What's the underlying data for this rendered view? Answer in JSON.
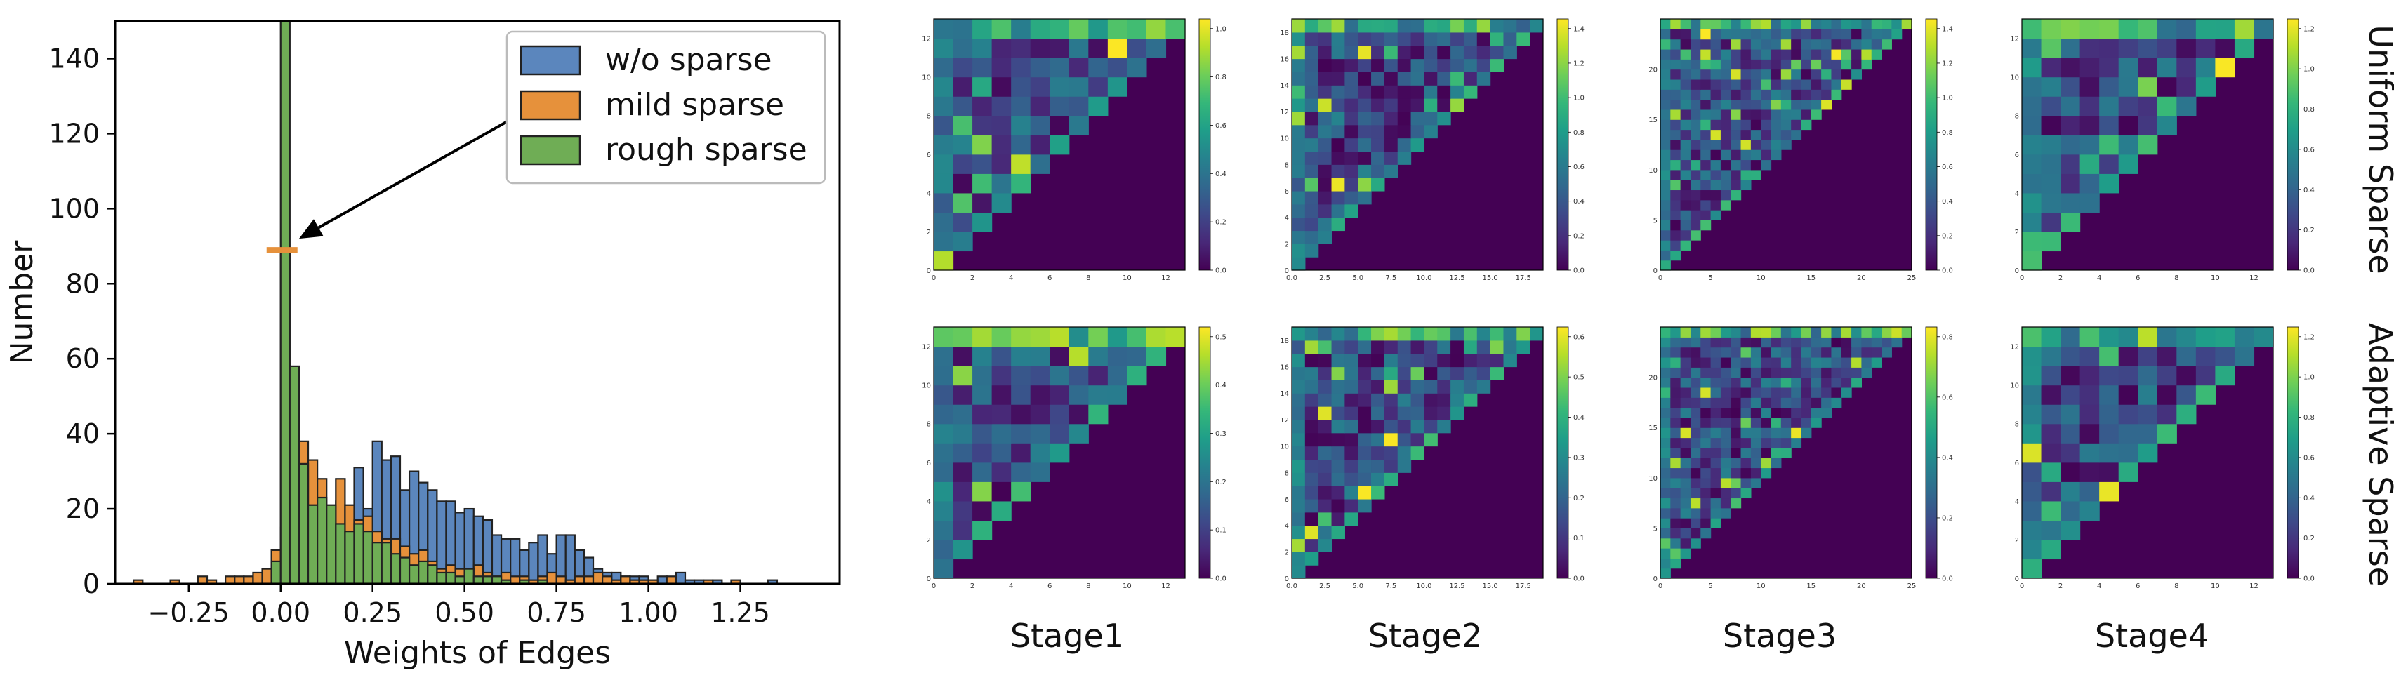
{
  "colors": {
    "wo_sparse": "#5b86bd",
    "mild_sparse": "#e6913b",
    "rough_sparse": "#6fad55",
    "bar_edge": "#222222",
    "viridis": [
      "#440154",
      "#482878",
      "#3e4989",
      "#31688e",
      "#26828e",
      "#1f9e89",
      "#35b779",
      "#6ece58",
      "#b5de2b",
      "#fde725"
    ]
  },
  "chart_data": [
    {
      "type": "bar",
      "chart": "histogram",
      "xlabel": "Weights of Edges",
      "ylabel": "Number",
      "xlim": [
        -0.45,
        1.52
      ],
      "ylim": [
        0,
        150
      ],
      "xticks": [
        -0.25,
        0.0,
        0.25,
        0.5,
        0.75,
        1.0,
        1.25
      ],
      "xtick_labels": [
        "−0.25",
        "0.00",
        "0.25",
        "0.50",
        "0.75",
        "1.00",
        "1.25"
      ],
      "yticks": [
        0,
        20,
        40,
        60,
        80,
        100,
        120,
        140
      ],
      "ytick_labels": [
        "0",
        "20",
        "40",
        "60",
        "80",
        "100",
        "120",
        "140"
      ],
      "grid": false,
      "legend_position": "top-right",
      "bin_width": 0.025,
      "annotation": {
        "type": "arrow",
        "text": "",
        "from": [
          0.63,
          124
        ],
        "to": [
          0.05,
          92
        ]
      },
      "marker": {
        "x": 0.0,
        "y": 89,
        "color": "#e6913b"
      },
      "series": [
        {
          "name": "w/o sparse",
          "bins": [
            [
              -0.025,
              4
            ],
            [
              0.0,
              15
            ],
            [
              0.025,
              18
            ],
            [
              0.05,
              13
            ],
            [
              0.075,
              16
            ],
            [
              0.1,
              14
            ],
            [
              0.125,
              16
            ],
            [
              0.15,
              22
            ],
            [
              0.175,
              20
            ],
            [
              0.2,
              31
            ],
            [
              0.225,
              20
            ],
            [
              0.25,
              38
            ],
            [
              0.275,
              33
            ],
            [
              0.3,
              34
            ],
            [
              0.325,
              25
            ],
            [
              0.35,
              30
            ],
            [
              0.375,
              27
            ],
            [
              0.4,
              25
            ],
            [
              0.425,
              22
            ],
            [
              0.45,
              22
            ],
            [
              0.475,
              19
            ],
            [
              0.5,
              20
            ],
            [
              0.525,
              18
            ],
            [
              0.55,
              17
            ],
            [
              0.575,
              13
            ],
            [
              0.6,
              12
            ],
            [
              0.625,
              12
            ],
            [
              0.65,
              9
            ],
            [
              0.675,
              11
            ],
            [
              0.7,
              13
            ],
            [
              0.725,
              8
            ],
            [
              0.75,
              13
            ],
            [
              0.775,
              13
            ],
            [
              0.8,
              9
            ],
            [
              0.825,
              7
            ],
            [
              0.85,
              4
            ],
            [
              0.875,
              3
            ],
            [
              0.9,
              3
            ],
            [
              0.925,
              2
            ],
            [
              0.95,
              2
            ],
            [
              0.975,
              2
            ],
            [
              1.0,
              1
            ],
            [
              1.025,
              2
            ],
            [
              1.05,
              1
            ],
            [
              1.075,
              3
            ],
            [
              1.1,
              1
            ],
            [
              1.125,
              1
            ],
            [
              1.175,
              1
            ],
            [
              1.325,
              1
            ]
          ]
        },
        {
          "name": "mild sparse",
          "bins": [
            [
              -0.4,
              1
            ],
            [
              -0.3,
              1
            ],
            [
              -0.225,
              2
            ],
            [
              -0.2,
              1
            ],
            [
              -0.15,
              2
            ],
            [
              -0.125,
              2
            ],
            [
              -0.1,
              2
            ],
            [
              -0.075,
              3
            ],
            [
              -0.05,
              4
            ],
            [
              -0.025,
              9
            ],
            [
              0.0,
              89
            ],
            [
              0.025,
              21
            ],
            [
              0.05,
              38
            ],
            [
              0.075,
              33
            ],
            [
              0.1,
              28
            ],
            [
              0.125,
              20
            ],
            [
              0.15,
              28
            ],
            [
              0.175,
              21
            ],
            [
              0.2,
              17
            ],
            [
              0.225,
              18
            ],
            [
              0.25,
              14
            ],
            [
              0.275,
              12
            ],
            [
              0.3,
              12
            ],
            [
              0.325,
              10
            ],
            [
              0.35,
              8
            ],
            [
              0.375,
              9
            ],
            [
              0.4,
              6
            ],
            [
              0.425,
              4
            ],
            [
              0.45,
              5
            ],
            [
              0.475,
              4
            ],
            [
              0.5,
              4
            ],
            [
              0.525,
              5
            ],
            [
              0.55,
              3
            ],
            [
              0.575,
              2
            ],
            [
              0.6,
              3
            ],
            [
              0.625,
              2
            ],
            [
              0.65,
              2
            ],
            [
              0.675,
              1
            ],
            [
              0.7,
              2
            ],
            [
              0.725,
              3
            ],
            [
              0.75,
              2
            ],
            [
              0.775,
              1
            ],
            [
              0.8,
              2
            ],
            [
              0.825,
              2
            ],
            [
              0.85,
              3
            ],
            [
              0.875,
              2
            ],
            [
              0.9,
              1
            ],
            [
              0.925,
              2
            ],
            [
              0.95,
              1
            ],
            [
              0.975,
              1
            ],
            [
              1.0,
              1
            ],
            [
              1.05,
              2
            ],
            [
              1.15,
              1
            ],
            [
              1.225,
              1
            ]
          ]
        },
        {
          "name": "rough sparse",
          "bins": [
            [
              -0.025,
              6
            ],
            [
              0.0,
              150
            ],
            [
              0.025,
              58
            ],
            [
              0.05,
              32
            ],
            [
              0.075,
              21
            ],
            [
              0.1,
              23
            ],
            [
              0.125,
              21
            ],
            [
              0.15,
              16
            ],
            [
              0.175,
              14
            ],
            [
              0.2,
              16
            ],
            [
              0.225,
              14
            ],
            [
              0.25,
              11
            ],
            [
              0.275,
              11
            ],
            [
              0.3,
              8
            ],
            [
              0.325,
              7
            ],
            [
              0.35,
              5
            ],
            [
              0.375,
              6
            ],
            [
              0.4,
              5
            ],
            [
              0.425,
              3
            ],
            [
              0.45,
              3
            ],
            [
              0.475,
              2
            ],
            [
              0.5,
              4
            ],
            [
              0.525,
              2
            ],
            [
              0.55,
              2
            ],
            [
              0.575,
              2
            ],
            [
              0.6,
              1
            ],
            [
              0.65,
              1
            ],
            [
              0.7,
              1
            ]
          ]
        }
      ]
    },
    {
      "type": "heatmap",
      "panels": [
        {
          "row": "Uniform Sparse",
          "stage": "Stage1",
          "n": 13,
          "vmax": 1.0,
          "colorbar_ticks": [
            "0.0",
            "0.2",
            "0.4",
            "0.6",
            "0.8",
            "1.0"
          ],
          "xticks": [
            "0",
            "2",
            "4",
            "6",
            "8",
            "10",
            "12"
          ],
          "yticks": [
            "0",
            "2",
            "4",
            "6",
            "8",
            "10",
            "12"
          ],
          "seed": 11
        },
        {
          "row": "Uniform Sparse",
          "stage": "Stage2",
          "n": 19,
          "vmax": 1.4,
          "colorbar_ticks": [
            "0.0",
            "0.2",
            "0.4",
            "0.6",
            "0.8",
            "1.0",
            "1.2",
            "1.4"
          ],
          "xticks": [
            "0.0",
            "2.5",
            "5.0",
            "7.5",
            "10.0",
            "12.5",
            "15.0",
            "17.5"
          ],
          "yticks": [
            "0",
            "2",
            "4",
            "6",
            "8",
            "10",
            "12",
            "14",
            "16",
            "18"
          ],
          "seed": 23
        },
        {
          "row": "Uniform Sparse",
          "stage": "Stage3",
          "n": 25,
          "vmax": 1.4,
          "colorbar_ticks": [
            "0.0",
            "0.2",
            "0.4",
            "0.6",
            "0.8",
            "1.0",
            "1.2",
            "1.4"
          ],
          "xticks": [
            "0",
            "5",
            "10",
            "15",
            "20",
            "25"
          ],
          "yticks": [
            "0",
            "5",
            "10",
            "15",
            "20"
          ],
          "seed": 37
        },
        {
          "row": "Uniform Sparse",
          "stage": "Stage4",
          "n": 13,
          "vmax": 1.2,
          "colorbar_ticks": [
            "0.0",
            "0.2",
            "0.4",
            "0.6",
            "0.8",
            "1.0",
            "1.2"
          ],
          "xticks": [
            "0",
            "2",
            "4",
            "6",
            "8",
            "10",
            "12"
          ],
          "yticks": [
            "0",
            "2",
            "4",
            "6",
            "8",
            "10",
            "12"
          ],
          "seed": 41
        },
        {
          "row": "Adaptive Sparse",
          "stage": "Stage1",
          "n": 13,
          "vmax": 0.5,
          "colorbar_ticks": [
            "0.0",
            "0.1",
            "0.2",
            "0.3",
            "0.4",
            "0.5"
          ],
          "xticks": [
            "0",
            "2",
            "4",
            "6",
            "8",
            "10",
            "12"
          ],
          "yticks": [
            "0",
            "2",
            "4",
            "6",
            "8",
            "10",
            "12"
          ],
          "seed": 53
        },
        {
          "row": "Adaptive Sparse",
          "stage": "Stage2",
          "n": 19,
          "vmax": 0.6,
          "colorbar_ticks": [
            "0.0",
            "0.1",
            "0.2",
            "0.3",
            "0.4",
            "0.5",
            "0.6"
          ],
          "xticks": [
            "0.0",
            "2.5",
            "5.0",
            "7.5",
            "10.0",
            "12.5",
            "15.0",
            "17.5"
          ],
          "yticks": [
            "0",
            "2",
            "4",
            "6",
            "8",
            "10",
            "12",
            "14",
            "16",
            "18"
          ],
          "seed": 67
        },
        {
          "row": "Adaptive Sparse",
          "stage": "Stage3",
          "n": 25,
          "vmax": 0.8,
          "colorbar_ticks": [
            "0.0",
            "0.2",
            "0.4",
            "0.6",
            "0.8"
          ],
          "xticks": [
            "0",
            "5",
            "10",
            "15",
            "20",
            "25"
          ],
          "yticks": [
            "0",
            "5",
            "10",
            "15",
            "20"
          ],
          "seed": 79
        },
        {
          "row": "Adaptive Sparse",
          "stage": "Stage4",
          "n": 13,
          "vmax": 1.2,
          "colorbar_ticks": [
            "0.0",
            "0.2",
            "0.4",
            "0.6",
            "0.8",
            "1.0",
            "1.2"
          ],
          "xticks": [
            "0",
            "2",
            "4",
            "6",
            "8",
            "10",
            "12"
          ],
          "yticks": [
            "0",
            "2",
            "4",
            "6",
            "8",
            "10",
            "12"
          ],
          "seed": 83
        }
      ],
      "column_labels": [
        "Stage1",
        "Stage2",
        "Stage3",
        "Stage4"
      ],
      "row_labels": [
        "Uniform Sparse",
        "Adaptive Sparse"
      ]
    }
  ]
}
